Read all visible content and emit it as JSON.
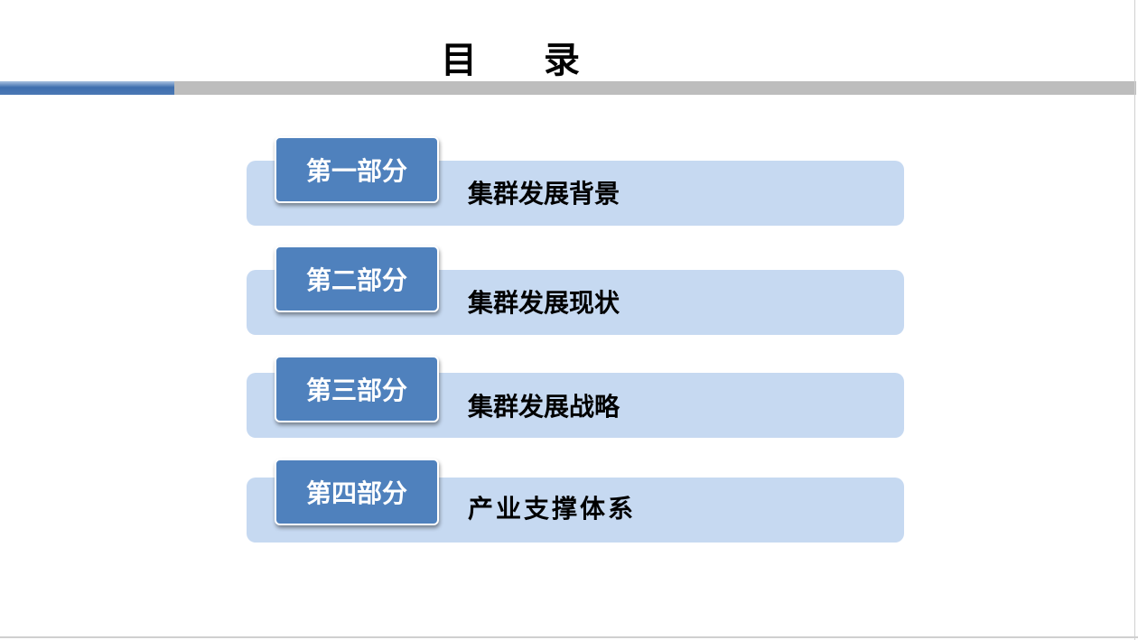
{
  "title": "目 录",
  "colors": {
    "accent": "#4f81bd",
    "band": "#c6d9f1",
    "divider": "#bdbdbd"
  },
  "sections": [
    {
      "part": "第一部分",
      "label": "集群发展背景"
    },
    {
      "part": "第二部分",
      "label": "集群发展现状"
    },
    {
      "part": "第三部分",
      "label": "集群发展战略"
    },
    {
      "part": "第四部分",
      "label": "产业支撑体系"
    }
  ]
}
